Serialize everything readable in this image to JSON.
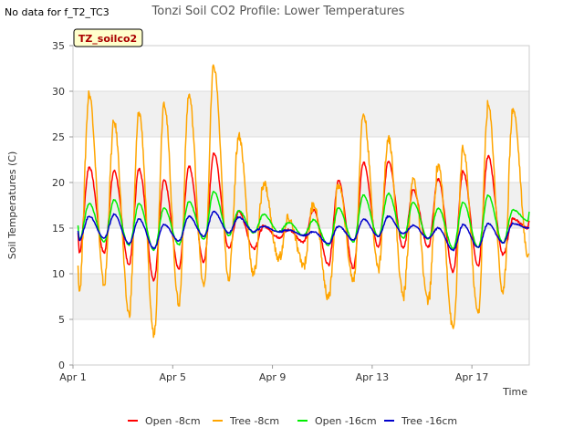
{
  "note": "No data for f_T2_TC3",
  "badge": "TZ_soilco2",
  "chart_data": {
    "type": "line",
    "title": "Tonzi Soil CO2 Profile: Lower Temperatures",
    "xlabel": "Time",
    "ylabel": "Soil Temperatures (C)",
    "x_unit": "days after Apr 1",
    "xlim": [
      0,
      18.3
    ],
    "ylim": [
      0,
      35
    ],
    "yticks": [
      0,
      5,
      10,
      15,
      20,
      25,
      30,
      35
    ],
    "xticks": [
      {
        "pos": 0,
        "label": "Apr 1"
      },
      {
        "pos": 4,
        "label": "Apr 5"
      },
      {
        "pos": 8,
        "label": "Apr 9"
      },
      {
        "pos": 12,
        "label": "Apr 13"
      },
      {
        "pos": 16,
        "label": "Apr 17"
      }
    ],
    "grid": "horizontal bands",
    "legend_position": "bottom",
    "series": [
      {
        "name": "Open -8cm",
        "color": "#ff0000",
        "mins": [
          12.3,
          12.3,
          11.0,
          9.3,
          10.5,
          11.3,
          12.8,
          12.8,
          14.0,
          13.5,
          11.0,
          10.6,
          12.9,
          12.8,
          12.9,
          10.2,
          10.9,
          12.1,
          15.0
        ],
        "maxs": [
          21.7,
          21.3,
          21.5,
          20.3,
          21.8,
          23.2,
          16.8,
          15.2,
          14.8,
          17.0,
          20.2,
          22.2,
          22.3,
          19.2,
          20.4,
          21.2,
          22.9,
          16.0
        ],
        "start": 14.5,
        "end": 15.8
      },
      {
        "name": "Tree -8cm",
        "color": "#ffa500",
        "mins": [
          8.1,
          8.8,
          5.6,
          3.4,
          6.7,
          8.6,
          9.6,
          9.9,
          11.6,
          11.0,
          7.3,
          9.3,
          10.6,
          7.6,
          7.0,
          4.0,
          5.7,
          7.8,
          12.0
        ],
        "maxs": [
          29.7,
          26.6,
          27.7,
          28.8,
          29.6,
          32.7,
          25.2,
          20.0,
          16.0,
          17.7,
          19.8,
          27.5,
          24.9,
          20.4,
          22.0,
          23.6,
          28.5,
          28.1
        ],
        "start": 10.9,
        "end": 12.2
      },
      {
        "name": "Open -16cm",
        "color": "#00ee00",
        "mins": [
          13.7,
          13.5,
          13.1,
          12.6,
          13.2,
          13.8,
          14.2,
          14.5,
          14.6,
          14.2,
          13.1,
          13.5,
          14.1,
          13.9,
          13.8,
          12.8,
          12.9,
          13.4,
          15.8
        ],
        "maxs": [
          17.7,
          18.1,
          17.7,
          17.2,
          17.9,
          19.0,
          16.9,
          16.5,
          15.6,
          15.9,
          17.2,
          18.6,
          18.8,
          17.8,
          17.2,
          17.8,
          18.6,
          17.0
        ],
        "start": 15.3,
        "end": 16.8
      },
      {
        "name": "Tree -16cm",
        "color": "#0000cc",
        "mins": [
          13.7,
          13.9,
          13.3,
          12.8,
          13.6,
          14.1,
          14.5,
          14.6,
          14.6,
          14.2,
          13.3,
          13.7,
          14.1,
          14.4,
          13.9,
          12.6,
          12.9,
          13.4,
          15.0
        ],
        "maxs": [
          16.3,
          16.5,
          16.0,
          15.4,
          16.3,
          16.8,
          16.2,
          15.2,
          14.8,
          14.6,
          15.2,
          16.0,
          16.3,
          15.3,
          15.0,
          15.4,
          15.5,
          15.5
        ],
        "start": 14.7,
        "end": 15.0
      }
    ]
  }
}
